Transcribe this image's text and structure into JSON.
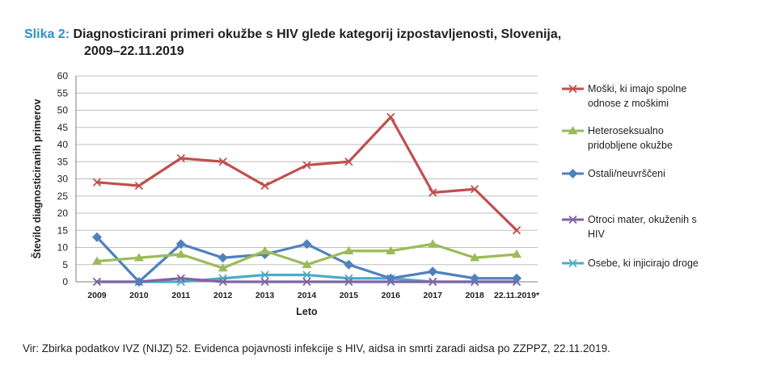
{
  "heading": {
    "label": "Slika 2:",
    "text_line1": "Diagnosticirani primeri okužbe s HIV glede kategorij izpostavljenosti, Slovenija,",
    "text_line2": "2009–22.11.2019"
  },
  "chart_data": {
    "type": "line",
    "title": "Diagnosticirani primeri okužbe s HIV glede kategorij izpostavljenosti, Slovenija, 2009–22.11.2019",
    "xlabel": "Leto",
    "ylabel": "Število diagnosticiranih primerov",
    "ylim": [
      0,
      60
    ],
    "yticks": [
      0,
      5,
      10,
      15,
      20,
      25,
      30,
      35,
      40,
      45,
      50,
      55,
      60
    ],
    "grid": true,
    "legend_position": "right",
    "categories": [
      "2009",
      "2010",
      "2011",
      "2012",
      "2013",
      "2014",
      "2015",
      "2016",
      "2017",
      "2018",
      "22.11.2019*"
    ],
    "series": [
      {
        "name": "Moški, ki imajo spolne odnose z moškimi",
        "legend_lines": [
          "Moški, ki imajo spolne",
          "odnose z moškimi"
        ],
        "color": "#c0504d",
        "marker": "x",
        "values": [
          29,
          28,
          36,
          35,
          28,
          34,
          35,
          48,
          26,
          27,
          15
        ]
      },
      {
        "name": "Heteroseksualno pridobljene okužbe",
        "legend_lines": [
          "Heteroseksualno",
          "pridobljene okužbe"
        ],
        "color": "#9bbb59",
        "marker": "triangle",
        "values": [
          6,
          7,
          8,
          4,
          9,
          5,
          9,
          9,
          11,
          7,
          8
        ]
      },
      {
        "name": "Ostali/neuvrščeni",
        "legend_lines": [
          "Ostali/neuvrščeni"
        ],
        "color": "#4f81bd",
        "marker": "diamond",
        "values": [
          13,
          0,
          11,
          7,
          8,
          11,
          5,
          1,
          3,
          1,
          1
        ]
      },
      {
        "name": "Otroci mater, okuženih s HIV",
        "legend_lines": [
          "Otroci mater, okuženih s",
          "HIV"
        ],
        "color": "#8064a2",
        "marker": "x",
        "values": [
          0,
          0,
          1,
          0,
          0,
          0,
          0,
          0,
          0,
          0,
          0
        ]
      },
      {
        "name": "Osebe, ki injicirajo droge",
        "legend_lines": [
          "Osebe, ki injicirajo droge"
        ],
        "color": "#4bacc6",
        "marker": "x",
        "values": [
          0,
          0,
          0,
          1,
          2,
          2,
          1,
          1,
          0,
          0,
          0
        ]
      }
    ]
  },
  "source": "Vir: Zbirka podatkov IVZ (NIJZ) 52. Evidenca pojavnosti infekcije s HIV, aidsa in smrti zaradi aidsa po ZZPPZ, 22.11.2019."
}
